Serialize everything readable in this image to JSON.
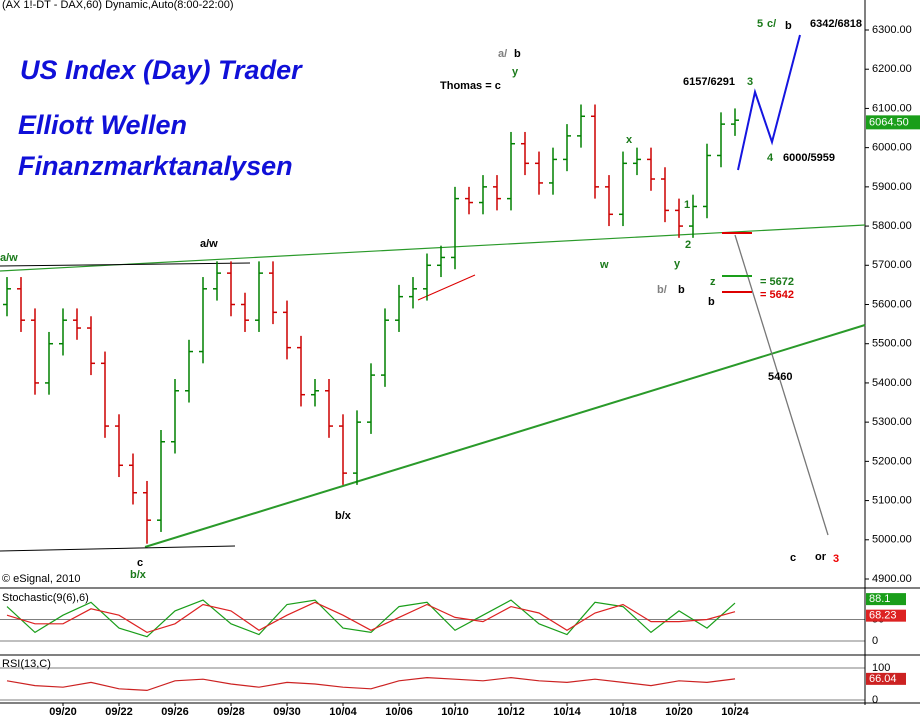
{
  "chart_data": [
    {
      "type": "candlestick",
      "title": "(AX 1!-DT - DAX,60) Dynamic,Auto(8:00-22:00)",
      "copyright": "© eSignal, 2010",
      "headline": [
        "US Index (Day) Trader",
        "Elliott Wellen",
        "Finanzmarktanalysen"
      ],
      "categories": [
        null,
        null,
        null,
        null,
        "09/20",
        null,
        null,
        null,
        "09/22",
        null,
        null,
        null,
        "09/26",
        null,
        null,
        null,
        "09/28",
        null,
        null,
        null,
        "09/30",
        null,
        null,
        null,
        "10/04",
        null,
        null,
        null,
        "10/06",
        null,
        null,
        null,
        "10/10",
        null,
        null,
        null,
        "10/12",
        null,
        null,
        null,
        "10/14",
        null,
        null,
        null,
        "10/18",
        null,
        null,
        null,
        "10/20",
        null,
        null,
        null,
        "10/24"
      ],
      "open": [
        5600,
        5640,
        5560,
        5400,
        5500,
        5560,
        5540,
        5450,
        5290,
        5190,
        5120,
        5050,
        5250,
        5380,
        5480,
        5640,
        5680,
        5600,
        5560,
        5680,
        5580,
        5490,
        5370,
        5380,
        5290,
        5170,
        5300,
        5420,
        5560,
        5620,
        5640,
        5700,
        5720,
        5870,
        5860,
        5900,
        5870,
        6010,
        5960,
        5910,
        5970,
        6030,
        6080,
        5900,
        5830,
        5960,
        5970,
        5920,
        5840,
        5800,
        5850,
        5980,
        6060
      ],
      "high": [
        5670,
        5670,
        5590,
        5530,
        5590,
        5590,
        5570,
        5480,
        5320,
        5220,
        5150,
        5280,
        5410,
        5510,
        5670,
        5710,
        5710,
        5630,
        5710,
        5710,
        5610,
        5520,
        5410,
        5410,
        5320,
        5330,
        5450,
        5590,
        5650,
        5670,
        5730,
        5750,
        5900,
        5900,
        5930,
        5930,
        6040,
        6040,
        5990,
        6000,
        6060,
        6110,
        6110,
        5930,
        5990,
        6000,
        6000,
        5950,
        5870,
        5880,
        6010,
        6090,
        6100
      ],
      "low": [
        5570,
        5530,
        5370,
        5370,
        5470,
        5510,
        5420,
        5260,
        5160,
        5090,
        4990,
        5020,
        5220,
        5350,
        5450,
        5610,
        5570,
        5530,
        5530,
        5550,
        5460,
        5340,
        5340,
        5260,
        5140,
        5140,
        5270,
        5390,
        5530,
        5590,
        5610,
        5670,
        5690,
        5830,
        5830,
        5840,
        5840,
        5930,
        5880,
        5880,
        5940,
        6000,
        5870,
        5800,
        5800,
        5930,
        5890,
        5810,
        5770,
        5770,
        5820,
        5950,
        6030
      ],
      "close": [
        5640,
        5560,
        5400,
        5500,
        5560,
        5540,
        5450,
        5290,
        5190,
        5120,
        5050,
        5250,
        5380,
        5480,
        5640,
        5680,
        5600,
        5560,
        5680,
        5580,
        5490,
        5370,
        5380,
        5290,
        5170,
        5300,
        5420,
        5560,
        5620,
        5640,
        5700,
        5720,
        5870,
        5860,
        5900,
        5870,
        6010,
        5960,
        5910,
        5970,
        6030,
        6080,
        5900,
        5830,
        5960,
        5970,
        5920,
        5840,
        5800,
        5850,
        5980,
        6060,
        6070
      ],
      "up_color": "#008000",
      "down_color": "#cc0000",
      "ylim": [
        4900,
        6300
      ],
      "yticks": [
        {
          "value": 4900,
          "label": "4900.00"
        },
        {
          "value": 5000,
          "label": "5000.00"
        },
        {
          "value": 5100,
          "label": "5100.00"
        },
        {
          "value": 5200,
          "label": "5200.00"
        },
        {
          "value": 5300,
          "label": "5300.00"
        },
        {
          "value": 5400,
          "label": "5400.00"
        },
        {
          "value": 5500,
          "label": "5500.00"
        },
        {
          "value": 5600,
          "label": "5600.00"
        },
        {
          "value": 5700,
          "label": "5700.00"
        },
        {
          "value": 5800,
          "label": "5800.00"
        },
        {
          "value": 5900,
          "label": "5900.00"
        },
        {
          "value": 6000,
          "label": "6000.00"
        },
        {
          "value": 6100,
          "label": "6100.00"
        },
        {
          "value": 6200,
          "label": "6200.00"
        },
        {
          "value": 6300,
          "label": "6300.00"
        }
      ],
      "last_price": {
        "value": 6064.5,
        "label": "6064.50"
      },
      "last_color": "#1a9e1a",
      "annotations": [
        {
          "text": "5",
          "color": "#1a7a1a"
        },
        {
          "text": "c/",
          "color": "#1a7a1a"
        },
        {
          "text": "b",
          "color": "#000000"
        },
        {
          "text": "6342/6818",
          "color": "#000000"
        },
        {
          "text": "a/",
          "color": "#808080"
        },
        {
          "text": "b",
          "color": "#000000"
        },
        {
          "text": "y",
          "color": "#1a7a1a"
        },
        {
          "text": "Thomas = c",
          "color": "#000000"
        },
        {
          "text": "6157/6291",
          "color": "#000000"
        },
        {
          "text": "3",
          "color": "#1a7a1a"
        },
        {
          "text": "4",
          "color": "#1a7a1a"
        },
        {
          "text": "6000/5959",
          "color": "#000000"
        },
        {
          "text": "1",
          "color": "#1a7a1a"
        },
        {
          "text": "2",
          "color": "#1a7a1a"
        },
        {
          "text": "x",
          "color": "#1a7a1a"
        },
        {
          "text": "w",
          "color": "#1a7a1a"
        },
        {
          "text": "y",
          "color": "#1a7a1a"
        },
        {
          "text": "b/",
          "color": "#808080"
        },
        {
          "text": "b",
          "color": "#000000"
        },
        {
          "text": "b",
          "color": "#000000"
        },
        {
          "text": "z",
          "color": "#1a7a1a"
        },
        {
          "text": "= 5672",
          "color": "#1a7a1a"
        },
        {
          "text": "= 5642",
          "color": "#dd0000"
        },
        {
          "text": "5460",
          "color": "#000000"
        },
        {
          "text": "c",
          "color": "#000000"
        },
        {
          "text": "or",
          "color": "#000000"
        },
        {
          "text": "3",
          "color": "#ee0000"
        },
        {
          "text": "a/w",
          "color": "#1a7a1a"
        },
        {
          "text": "a/w",
          "color": "#000000"
        },
        {
          "text": "b/x",
          "color": "#1a7a1a"
        },
        {
          "text": "b/x",
          "color": "#000000"
        },
        {
          "text": "c",
          "color": "#000000"
        }
      ]
    },
    {
      "type": "line",
      "title": "Stochastic(9(6),6)",
      "ylim": [
        0,
        100
      ],
      "yticks": [
        0,
        50
      ],
      "series": [
        {
          "name": "K",
          "color": "#1a9e1a",
          "values": [
            80,
            20,
            60,
            90,
            30,
            10,
            70,
            95,
            40,
            15,
            85,
            95,
            30,
            20,
            80,
            90,
            25,
            60,
            95,
            40,
            15,
            90,
            80,
            20,
            70,
            30,
            88.1
          ]
        },
        {
          "name": "D",
          "color": "#dd2222",
          "values": [
            60,
            40,
            40,
            75,
            60,
            20,
            40,
            85,
            70,
            25,
            60,
            90,
            60,
            25,
            55,
            85,
            55,
            45,
            80,
            65,
            25,
            65,
            85,
            45,
            45,
            50,
            68.23
          ]
        }
      ]
    },
    {
      "type": "line",
      "title": "RSI(13,C)",
      "ylim": [
        0,
        100
      ],
      "yticks": [
        0,
        100
      ],
      "series": [
        {
          "name": "RSI",
          "color": "#cc2222",
          "values": [
            60,
            45,
            40,
            55,
            35,
            30,
            60,
            65,
            50,
            40,
            55,
            50,
            40,
            35,
            60,
            70,
            65,
            60,
            70,
            60,
            55,
            65,
            55,
            45,
            60,
            55,
            66.04
          ]
        }
      ]
    }
  ]
}
